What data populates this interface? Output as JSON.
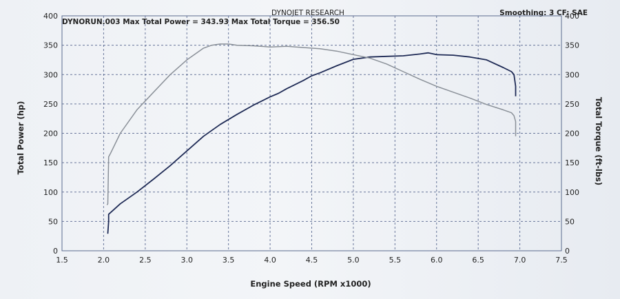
{
  "header": {
    "center": "DYNOJET RESEARCH",
    "right": "Smoothing: 3  CF: SAE",
    "run_summary": "DYNORUN.003 Max Total Power = 343.93 Max Total Torque = 356.50"
  },
  "colors": {
    "power_line": "#1e2a55",
    "torque_line": "#8a9098",
    "grid": "#3b4c7c",
    "plot_border": "#5a6a8e"
  },
  "chart_data": {
    "type": "line",
    "xlabel": "Engine Speed (RPM x1000)",
    "ylabel": "Total Power (hp)",
    "y2label": "Total Torque (ft-lbs)",
    "xlim": [
      1.5,
      7.5
    ],
    "ylim": [
      0,
      400
    ],
    "y2lim": [
      0,
      400
    ],
    "x_ticks": [
      "1.5",
      "2.0",
      "2.5",
      "3.0",
      "3.5",
      "4.0",
      "4.5",
      "5.0",
      "5.5",
      "6.0",
      "6.5",
      "7.0",
      "7.5"
    ],
    "y_ticks": [
      "0",
      "50",
      "100",
      "150",
      "200",
      "250",
      "300",
      "350",
      "400"
    ],
    "y2_ticks": [
      "0",
      "50",
      "100",
      "150",
      "200",
      "250",
      "300",
      "350",
      "400"
    ],
    "grid": true,
    "series": [
      {
        "axis": "left",
        "role": "power",
        "x": [
          2.05,
          2.05,
          2.06,
          2.06,
          2.2,
          2.4,
          2.6,
          2.8,
          3.0,
          3.2,
          3.4,
          3.6,
          3.8,
          4.0,
          4.1,
          4.2,
          4.4,
          4.5,
          4.6,
          4.8,
          5.0,
          5.2,
          5.4,
          5.6,
          5.8,
          5.9,
          6.0,
          6.2,
          6.4,
          6.6,
          6.8,
          6.9,
          6.93,
          6.95,
          6.95
        ],
        "y": [
          29,
          30,
          50,
          62,
          80,
          100,
          122,
          145,
          170,
          195,
          215,
          232,
          248,
          262,
          268,
          276,
          290,
          298,
          303,
          315,
          326,
          330,
          331,
          332,
          335,
          337,
          334,
          333,
          330,
          325,
          312,
          305,
          300,
          280,
          263
        ]
      },
      {
        "axis": "right",
        "role": "torque",
        "x": [
          2.04,
          2.05,
          2.06,
          2.08,
          2.2,
          2.4,
          2.6,
          2.8,
          3.0,
          3.2,
          3.3,
          3.4,
          3.5,
          3.6,
          3.8,
          4.0,
          4.2,
          4.4,
          4.6,
          4.8,
          5.0,
          5.2,
          5.4,
          5.6,
          5.8,
          6.0,
          6.2,
          6.4,
          6.6,
          6.8,
          6.9,
          6.93,
          6.95,
          6.95
        ],
        "y": [
          78,
          80,
          160,
          165,
          200,
          240,
          270,
          300,
          325,
          345,
          350,
          352,
          352,
          350,
          349,
          347,
          348,
          346,
          344,
          340,
          334,
          328,
          318,
          305,
          292,
          280,
          270,
          260,
          249,
          240,
          235,
          230,
          220,
          195
        ]
      }
    ]
  }
}
